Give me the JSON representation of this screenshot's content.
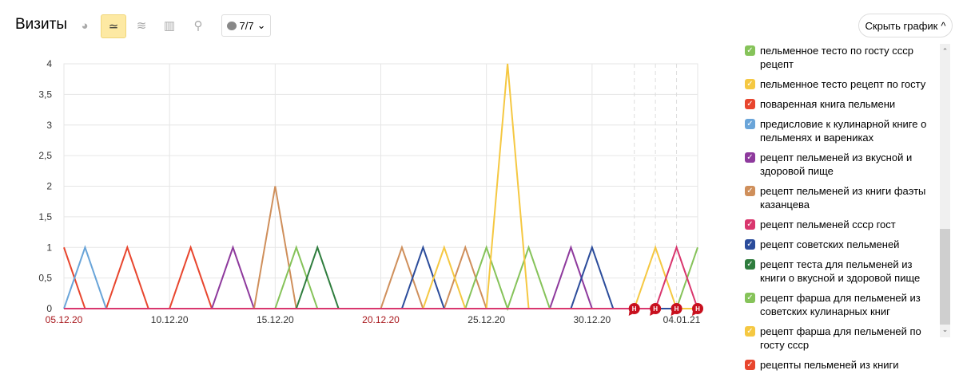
{
  "header": {
    "title": "Визиты",
    "segments_label": "7/7",
    "hide_chart_label": "Скрыть график"
  },
  "toolbar": {
    "icons": [
      "pie-chart-icon",
      "line-chart-icon",
      "area-chart-icon",
      "bar-chart-icon",
      "map-icon"
    ],
    "active": "line-chart-icon"
  },
  "chart_data": {
    "type": "line",
    "x": [
      "05.12.20",
      "06.12.20",
      "07.12.20",
      "08.12.20",
      "09.12.20",
      "10.12.20",
      "11.12.20",
      "12.12.20",
      "13.12.20",
      "14.12.20",
      "15.12.20",
      "16.12.20",
      "17.12.20",
      "18.12.20",
      "19.12.20",
      "20.12.20",
      "21.12.20",
      "22.12.20",
      "23.12.20",
      "24.12.20",
      "25.12.20",
      "26.12.20",
      "27.12.20",
      "28.12.20",
      "29.12.20",
      "30.12.20",
      "31.12.20",
      "01.01.21",
      "02.01.21",
      "03.01.21",
      "04.01.21"
    ],
    "x_tick_labels": [
      {
        "label": "05.12.20",
        "weekend": true
      },
      {
        "label": "10.12.20",
        "weekend": false
      },
      {
        "label": "15.12.20",
        "weekend": false
      },
      {
        "label": "20.12.20",
        "weekend": true
      },
      {
        "label": "25.12.20",
        "weekend": false
      },
      {
        "label": "30.12.20",
        "weekend": false
      },
      {
        "label": "04.01.21",
        "weekend": false
      }
    ],
    "y_tick_labels": [
      "0",
      "0,5",
      "1",
      "1,5",
      "2",
      "2,5",
      "3",
      "3,5",
      "4"
    ],
    "ylim": [
      0,
      4
    ],
    "grid": true,
    "holiday_marker_label": "Н",
    "holiday_dates": [
      "01.01.21",
      "02.01.21",
      "03.01.21",
      "04.01.21"
    ],
    "series": [
      {
        "color": "#e8462e",
        "values": [
          1,
          0,
          0,
          1,
          0,
          0,
          1,
          0,
          0,
          0,
          0,
          0,
          0,
          0,
          0,
          0,
          0,
          0,
          0,
          0,
          0,
          0,
          0,
          0,
          0,
          0,
          0,
          0,
          0,
          0,
          0
        ]
      },
      {
        "color": "#6aa5d9",
        "values": [
          0,
          1,
          0,
          0,
          0,
          0,
          0,
          0,
          0,
          0,
          0,
          0,
          0,
          0,
          0,
          0,
          0,
          0,
          0,
          0,
          0,
          0,
          0,
          0,
          0,
          0,
          0,
          0,
          0,
          0,
          0
        ]
      },
      {
        "color": "#8e3a9d",
        "values": [
          0,
          0,
          0,
          0,
          0,
          0,
          0,
          0,
          1,
          0,
          0,
          0,
          0,
          0,
          0,
          0,
          0,
          0,
          0,
          0,
          0,
          0,
          0,
          0,
          1,
          0,
          0,
          0,
          0,
          0,
          0
        ]
      },
      {
        "color": "#cf8f5b",
        "values": [
          0,
          0,
          0,
          0,
          0,
          0,
          0,
          0,
          0,
          0,
          2,
          0,
          0,
          0,
          0,
          0,
          1,
          0,
          0,
          1,
          0,
          0,
          0,
          0,
          0,
          0,
          0,
          0,
          0,
          0,
          0
        ]
      },
      {
        "color": "#86c35a",
        "values": [
          0,
          0,
          0,
          0,
          0,
          0,
          0,
          0,
          0,
          0,
          0,
          1,
          0,
          0,
          0,
          0,
          0,
          0,
          0,
          0,
          1,
          0,
          1,
          0,
          0,
          0,
          0,
          0,
          0,
          0,
          1
        ]
      },
      {
        "color": "#2f7d3e",
        "values": [
          0,
          0,
          0,
          0,
          0,
          0,
          0,
          0,
          0,
          0,
          0,
          0,
          1,
          0,
          0,
          0,
          0,
          0,
          0,
          0,
          0,
          0,
          0,
          0,
          0,
          0,
          0,
          0,
          0,
          0,
          0
        ]
      },
      {
        "color": "#2b4c9b",
        "values": [
          0,
          0,
          0,
          0,
          0,
          0,
          0,
          0,
          0,
          0,
          0,
          0,
          0,
          0,
          0,
          0,
          0,
          1,
          0,
          0,
          0,
          0,
          0,
          0,
          0,
          1,
          0,
          0,
          0,
          0,
          0
        ]
      },
      {
        "color": "#f5c842",
        "values": [
          0,
          0,
          0,
          0,
          0,
          0,
          0,
          0,
          0,
          0,
          0,
          0,
          0,
          0,
          0,
          0,
          0,
          0,
          1,
          0,
          0,
          4,
          0,
          0,
          0,
          0,
          0,
          0,
          1,
          0,
          0
        ]
      },
      {
        "color": "#d9376e",
        "values": [
          0,
          0,
          0,
          0,
          0,
          0,
          0,
          0,
          0,
          0,
          0,
          0,
          0,
          0,
          0,
          0,
          0,
          0,
          0,
          0,
          0,
          0,
          0,
          0,
          0,
          0,
          0,
          0,
          0,
          1,
          0
        ]
      }
    ]
  },
  "legend": [
    {
      "label": "пельменное тесто по госту ссср рецепт",
      "color": "#86c35a"
    },
    {
      "label": "пельменное тесто рецепт по госту",
      "color": "#f5c842"
    },
    {
      "label": "поваренная книга пельмени",
      "color": "#e8462e"
    },
    {
      "label": "предисловие к кулинарной книге о пельменях и варениках",
      "color": "#6aa5d9"
    },
    {
      "label": "рецепт пельменей из вкусной и здоровой пище",
      "color": "#8e3a9d"
    },
    {
      "label": "рецепт пельменей из книги фаэты казанцева",
      "color": "#cf8f5b"
    },
    {
      "label": "рецепт пельменей ссср гост",
      "color": "#d9376e"
    },
    {
      "label": "рецепт советских пельменей",
      "color": "#2b4c9b"
    },
    {
      "label": "рецепт теста для пельменей из книги о вкусной и здоровой пище",
      "color": "#2f7d3e"
    },
    {
      "label": "рецепт фарша для пельменей из советских кулинарных книг",
      "color": "#86c35a"
    },
    {
      "label": "рецепт фарша для пельменей по госту ссср",
      "color": "#f5c842"
    },
    {
      "label": "рецепты пельменей из книги",
      "color": "#e8462e"
    }
  ]
}
